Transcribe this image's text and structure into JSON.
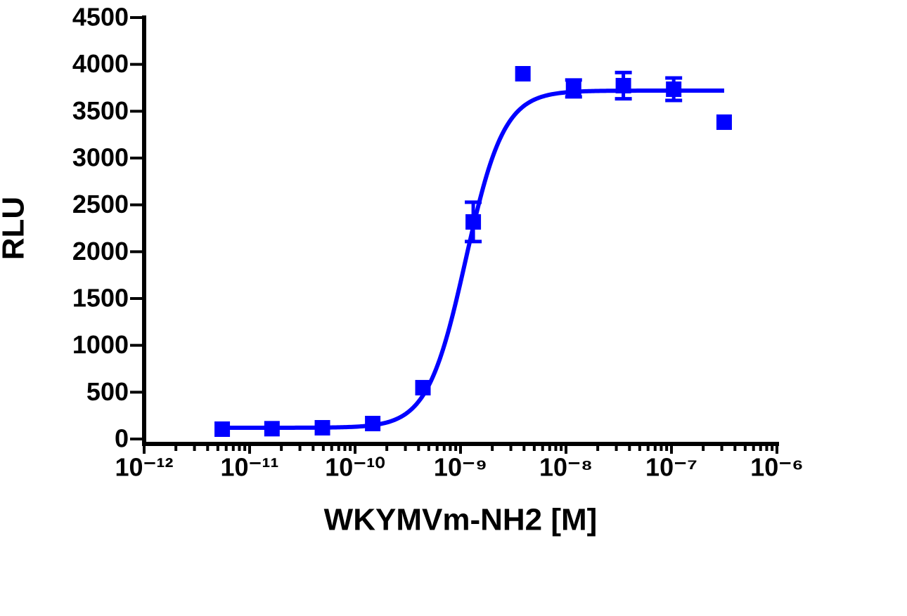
{
  "chart_data": {
    "type": "scatter",
    "x_label": "WKYMVm-NH2 [M]",
    "y_label": "RLU",
    "xscale": "log",
    "xlim": [
      1e-12,
      1e-06
    ],
    "xticks": [
      {
        "value": 1e-12,
        "label": "10⁻¹²"
      },
      {
        "value": 1e-11,
        "label": "10⁻¹¹"
      },
      {
        "value": 1e-10,
        "label": "10⁻¹⁰"
      },
      {
        "value": 1e-09,
        "label": "10⁻⁹"
      },
      {
        "value": 1e-08,
        "label": "10⁻⁸"
      },
      {
        "value": 1e-07,
        "label": "10⁻⁷"
      },
      {
        "value": 1e-06,
        "label": "10⁻⁶"
      }
    ],
    "ylim": [
      0,
      4500
    ],
    "yticks": [
      0,
      500,
      1000,
      1500,
      2000,
      2500,
      3000,
      3500,
      4000,
      4500
    ],
    "color": "#0000ff",
    "x": [
      5.5e-12,
      1.63e-11,
      4.9e-11,
      1.47e-10,
      4.4e-10,
      1.32e-09,
      3.9e-09,
      1.18e-08,
      3.5e-08,
      1.05e-07,
      3.16e-07
    ],
    "y": [
      105,
      110,
      120,
      165,
      548,
      2318,
      3900,
      3743,
      3773,
      3735,
      3383
    ],
    "error": [
      null,
      null,
      null,
      null,
      null,
      210,
      null,
      90,
      140,
      120,
      null
    ],
    "fit": {
      "bottom": 120,
      "top": 3720,
      "log_ec50": -8.95,
      "hill": 2.4
    }
  }
}
